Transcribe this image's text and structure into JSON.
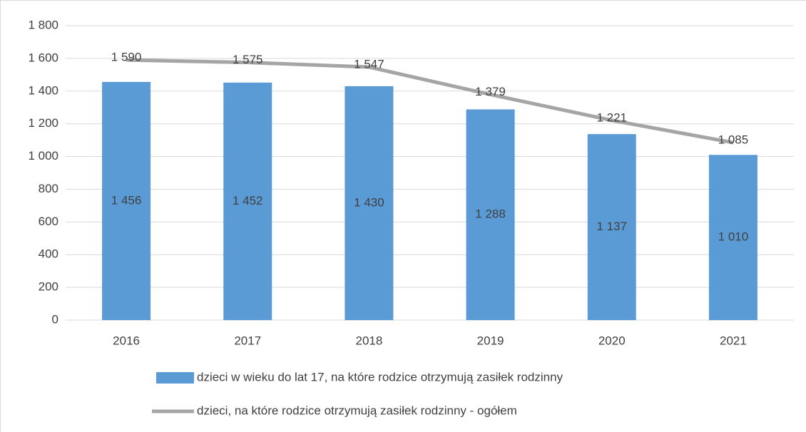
{
  "chart_data": {
    "type": "bar",
    "categories": [
      "2016",
      "2017",
      "2018",
      "2019",
      "2020",
      "2021"
    ],
    "series": [
      {
        "name": "dzieci w wieku do lat 17, na które rodzice otrzymują zasiłek rodzinny",
        "type": "bar",
        "color": "#5b9bd5",
        "values": [
          1456,
          1452,
          1430,
          1288,
          1137,
          1010
        ],
        "value_labels": [
          "1 456",
          "1 452",
          "1 430",
          "1 288",
          "1 137",
          "1 010"
        ]
      },
      {
        "name": "dzieci, na które rodzice otrzymują zasiłek rodzinny - ogółem",
        "type": "line",
        "color": "#a5a5a5",
        "values": [
          1590,
          1575,
          1547,
          1379,
          1221,
          1085
        ],
        "value_labels": [
          "1 590",
          "1 575",
          "1 547",
          "1 379",
          "1 221",
          "1 085"
        ]
      }
    ],
    "ylim": [
      0,
      1800
    ],
    "yticks": [
      0,
      200,
      400,
      600,
      800,
      {
        "value": 1000,
        "label": "1 000"
      },
      {
        "value": 1200,
        "label": "1 200"
      },
      {
        "value": 1400,
        "label": "1 400"
      },
      {
        "value": 1600,
        "label": "1 600"
      },
      {
        "value": 1800,
        "label": "1 800"
      }
    ],
    "grid": true,
    "legend": "bottom"
  }
}
